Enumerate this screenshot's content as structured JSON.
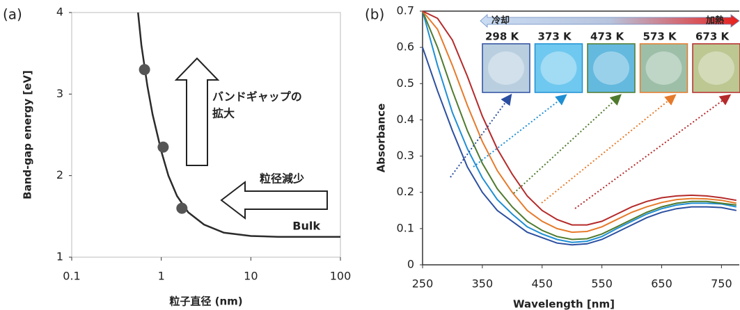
{
  "chart_data": [
    {
      "type": "line",
      "panel": "(a)",
      "x_label": "粒子直径 (nm)",
      "y_label": "Band-gap energy [eV]",
      "xscale": "log",
      "xlim": [
        0.1,
        100
      ],
      "ylim": [
        1,
        4
      ],
      "xticks": [
        0.1,
        1,
        10,
        100
      ],
      "yticks": [
        1,
        2,
        3,
        4
      ],
      "annotations": [
        "バンドギャップの",
        "拡大",
        "粒径減少",
        "Bulk"
      ],
      "series": [
        {
          "color": "#2b2b2b",
          "x": [
            0.55,
            0.6,
            0.7,
            0.8,
            1,
            1.2,
            1.5,
            2,
            3,
            5,
            10,
            20,
            50,
            100
          ],
          "values": [
            4.0,
            3.6,
            3.1,
            2.75,
            2.3,
            2.0,
            1.75,
            1.55,
            1.4,
            1.3,
            1.26,
            1.25,
            1.25,
            1.25
          ]
        }
      ],
      "points": {
        "color": "#555555",
        "x": [
          0.65,
          1.05,
          1.7
        ],
        "y": [
          3.3,
          2.35,
          1.6
        ]
      }
    },
    {
      "type": "line",
      "panel": "(b)",
      "x_label": "Wavelength [nm]",
      "y_label": "Absorbance",
      "xlim": [
        250,
        781
      ],
      "ylim": [
        0,
        0.7
      ],
      "xticks": [
        250,
        350,
        450,
        550,
        650,
        750
      ],
      "yticks": [
        0,
        0.1,
        0.2,
        0.3,
        0.4,
        0.5,
        0.6,
        0.7
      ],
      "cool_label": "冷却",
      "heat_label": "加熱",
      "x": [
        250,
        275,
        300,
        325,
        350,
        375,
        400,
        425,
        450,
        475,
        500,
        525,
        550,
        575,
        600,
        625,
        650,
        675,
        700,
        725,
        750,
        775
      ],
      "series": [
        {
          "name": "298 K",
          "color": "#2b4fa0",
          "values": [
            0.6,
            0.48,
            0.37,
            0.27,
            0.2,
            0.15,
            0.12,
            0.09,
            0.075,
            0.06,
            0.055,
            0.058,
            0.07,
            0.09,
            0.11,
            0.13,
            0.145,
            0.155,
            0.16,
            0.16,
            0.158,
            0.15
          ]
        },
        {
          "name": "373 K",
          "color": "#1f8fd4",
          "values": [
            0.7,
            0.55,
            0.42,
            0.32,
            0.24,
            0.18,
            0.14,
            0.105,
            0.085,
            0.07,
            0.062,
            0.065,
            0.078,
            0.1,
            0.12,
            0.14,
            0.155,
            0.165,
            0.17,
            0.17,
            0.168,
            0.16
          ]
        },
        {
          "name": "473 K",
          "color": "#4f7a2e",
          "values": [
            0.7,
            0.6,
            0.48,
            0.37,
            0.28,
            0.21,
            0.16,
            0.12,
            0.095,
            0.078,
            0.07,
            0.072,
            0.085,
            0.105,
            0.125,
            0.145,
            0.16,
            0.17,
            0.175,
            0.175,
            0.17,
            0.165
          ]
        },
        {
          "name": "573 K",
          "color": "#e67a2a",
          "values": [
            0.7,
            0.65,
            0.55,
            0.44,
            0.34,
            0.26,
            0.2,
            0.15,
            0.12,
            0.1,
            0.09,
            0.092,
            0.105,
            0.125,
            0.145,
            0.16,
            0.172,
            0.18,
            0.183,
            0.182,
            0.178,
            0.17
          ]
        },
        {
          "name": "673 K",
          "color": "#b52a2a",
          "values": [
            0.7,
            0.68,
            0.62,
            0.52,
            0.41,
            0.32,
            0.25,
            0.19,
            0.15,
            0.125,
            0.11,
            0.11,
            0.12,
            0.14,
            0.16,
            0.175,
            0.185,
            0.19,
            0.192,
            0.19,
            0.185,
            0.178
          ]
        }
      ]
    }
  ]
}
